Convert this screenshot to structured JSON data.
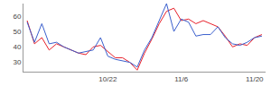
{
  "chart_data": {
    "type": "line",
    "categories": [
      null,
      null,
      null,
      null,
      null,
      null,
      null,
      null,
      null,
      null,
      null,
      "10/22",
      null,
      null,
      null,
      null,
      null,
      null,
      null,
      null,
      null,
      "11/6",
      null,
      null,
      null,
      null,
      null,
      null,
      null,
      null,
      null,
      "11/20",
      null
    ],
    "series": [
      {
        "color": "#e8202a",
        "values": [
          57,
          42,
          46,
          38,
          42,
          40,
          38,
          36,
          35,
          40,
          41,
          37,
          33,
          33,
          30,
          25,
          36,
          45,
          55,
          63,
          65,
          57,
          58,
          55,
          57,
          55,
          53,
          47,
          40,
          42,
          41,
          46,
          48
        ]
      },
      {
        "color": "#3a5fcd",
        "values": [
          56,
          43,
          55,
          42,
          43,
          40,
          38,
          36,
          37,
          38,
          46,
          34,
          32,
          31,
          30,
          27,
          38,
          46,
          57,
          68,
          50,
          58,
          56,
          47,
          48,
          48,
          53,
          46,
          42,
          41,
          43,
          46,
          47
        ]
      }
    ],
    "ylim": [
      24,
      68
    ],
    "yticks": [
      30,
      40,
      50,
      60
    ],
    "grid": false
  }
}
